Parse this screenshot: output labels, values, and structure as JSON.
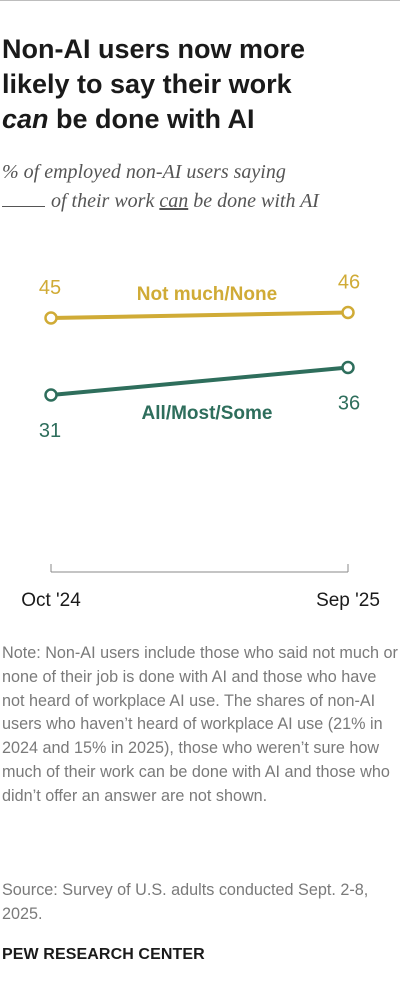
{
  "header": {
    "title_line1": "Non-AI users now more",
    "title_line2": "likely to say their work",
    "title_em": "can",
    "title_line3_rest": " be done with AI",
    "subtitle_line1": "% of employed non-AI users saying",
    "subtitle_mid": "of their work",
    "subtitle_u": "can",
    "subtitle_end": "be done with AI"
  },
  "chart_data": {
    "type": "line",
    "x": [
      "Oct '24",
      "Sep '25"
    ],
    "series": [
      {
        "name": "Not much/None",
        "values": [
          45,
          46
        ],
        "color": "#d0ab36"
      },
      {
        "name": "All/Most/Some",
        "values": [
          31,
          36
        ],
        "color": "#2e6e5c"
      }
    ],
    "ylim": [
      0,
      100
    ],
    "grid": false,
    "legend": "inline labels"
  },
  "footer": {
    "note": "Note: Non-AI users include those who said not much or none of their job is done with AI and those who have not heard of workplace AI use. The shares of non-AI users who haven’t heard of workplace AI use (21% in 2024 and 15% in 2025), those who weren’t sure how much of their work can be done with AI and those who didn’t offer an answer are not shown.",
    "source": "Source: Survey of U.S. adults conducted Sept. 2-8, 2025.",
    "brand": "PEW RESEARCH CENTER"
  }
}
